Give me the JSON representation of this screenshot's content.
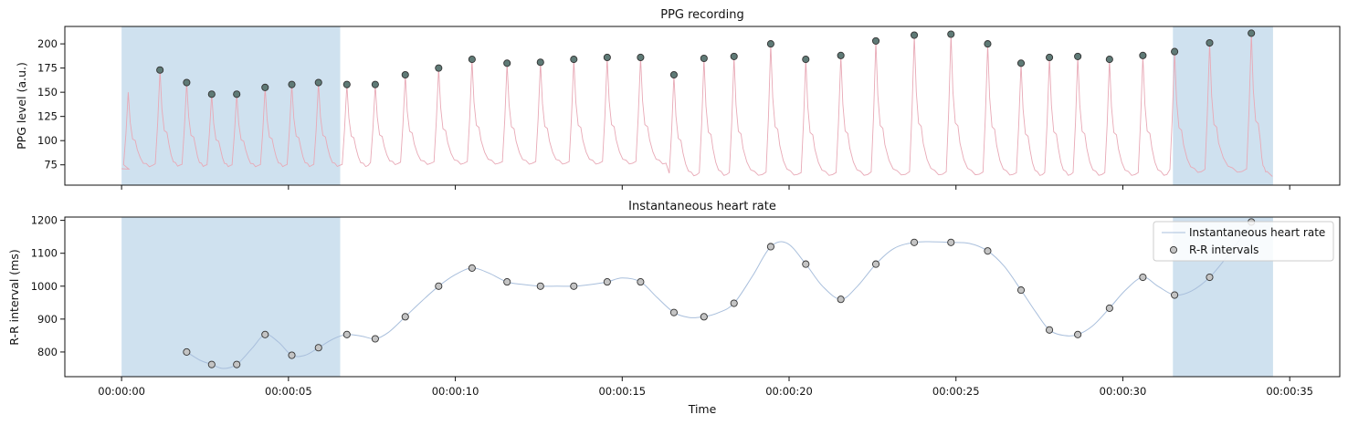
{
  "colors": {
    "shade": "#cfe1ef",
    "ppg_line": "#e8a9b6",
    "ppg_peak_fill": "#5f7a76",
    "hr_line": "#a9bfdc",
    "rr_point_fill": "#c4c4c4",
    "marker_edge": "#333333"
  },
  "chart_data": [
    {
      "type": "line",
      "title": "PPG recording",
      "ylabel": "PPG level (a.u.)",
      "xlim": [
        -1.7,
        36.5
      ],
      "ylim": [
        54,
        218
      ],
      "yticks": [
        75,
        100,
        125,
        150,
        175,
        200
      ],
      "xticks_seconds": [
        0,
        5,
        10,
        15,
        20,
        25,
        30,
        35
      ],
      "shaded_regions": [
        [
          0,
          6.55
        ],
        [
          31.5,
          34.5
        ]
      ],
      "peaks": {
        "t": [
          1.15,
          1.95,
          2.7,
          3.45,
          4.3,
          5.1,
          5.9,
          6.75,
          7.6,
          8.5,
          9.5,
          10.5,
          11.55,
          12.55,
          13.55,
          14.55,
          15.55,
          16.55,
          17.45,
          18.35,
          19.45,
          20.5,
          21.55,
          22.6,
          23.75,
          24.85,
          25.95,
          26.95,
          27.8,
          28.65,
          29.6,
          30.6,
          31.55,
          32.6,
          33.85
        ],
        "v": [
          173,
          160,
          148,
          148,
          155,
          158,
          160,
          158,
          158,
          168,
          175,
          184,
          180,
          181,
          184,
          186,
          186,
          168,
          185,
          187,
          200,
          184,
          188,
          203,
          209,
          210,
          200,
          180,
          186,
          187,
          184,
          188,
          192,
          201,
          211
        ]
      }
    },
    {
      "type": "line",
      "title": "Instantaneous heart rate",
      "ylabel": "R-R interval (ms)",
      "xlabel": "Time",
      "xlim": [
        -1.7,
        36.5
      ],
      "ylim": [
        725,
        1210
      ],
      "yticks": [
        800,
        900,
        1000,
        1100,
        1200
      ],
      "xticks": [
        "00:00:00",
        "00:00:05",
        "00:00:10",
        "00:00:15",
        "00:00:20",
        "00:00:25",
        "00:00:30",
        "00:00:35"
      ],
      "xticks_seconds": [
        0,
        5,
        10,
        15,
        20,
        25,
        30,
        35
      ],
      "shaded_regions": [
        [
          0,
          6.55
        ],
        [
          31.5,
          34.5
        ]
      ],
      "legend_position": "top-right",
      "series": [
        {
          "name": "Instantaneous heart rate",
          "kind": "line",
          "x": [
            1.95,
            2.35,
            2.7,
            3.05,
            3.45,
            3.9,
            4.3,
            4.7,
            5.1,
            5.5,
            5.9,
            6.35,
            6.75,
            7.2,
            7.6,
            8.0,
            8.5,
            9.0,
            9.5,
            10.0,
            10.5,
            11.0,
            11.55,
            12.05,
            12.55,
            13.05,
            13.55,
            14.05,
            14.55,
            15.0,
            15.55,
            16.05,
            16.55,
            17.0,
            17.45,
            17.9,
            18.35,
            18.9,
            19.45,
            19.95,
            20.5,
            21.0,
            21.55,
            22.05,
            22.6,
            23.15,
            23.75,
            24.3,
            24.85,
            25.4,
            25.95,
            26.45,
            26.95,
            27.4,
            27.8,
            28.25,
            28.65,
            29.1,
            29.6,
            30.1,
            30.6,
            31.05,
            31.55,
            32.05,
            32.6,
            33.2,
            33.85
          ],
          "y": [
            800,
            775,
            762,
            750,
            762,
            810,
            853,
            830,
            790,
            790,
            813,
            840,
            853,
            848,
            840,
            860,
            907,
            955,
            1000,
            1035,
            1055,
            1040,
            1013,
            1005,
            1000,
            1000,
            1000,
            1005,
            1013,
            1025,
            1013,
            965,
            920,
            905,
            907,
            920,
            948,
            1030,
            1120,
            1130,
            1067,
            1000,
            960,
            1000,
            1067,
            1115,
            1133,
            1135,
            1133,
            1130,
            1107,
            1060,
            988,
            920,
            867,
            850,
            853,
            880,
            933,
            990,
            1027,
            1000,
            973,
            985,
            1027,
            1100,
            1190
          ]
        },
        {
          "name": "R-R intervals",
          "kind": "scatter",
          "x": [
            1.95,
            2.7,
            3.45,
            4.3,
            5.1,
            5.9,
            6.75,
            7.6,
            8.5,
            9.5,
            10.5,
            11.55,
            12.55,
            13.55,
            14.55,
            15.55,
            16.55,
            17.45,
            18.35,
            19.45,
            20.5,
            21.55,
            22.6,
            23.75,
            24.85,
            25.95,
            26.95,
            27.8,
            28.65,
            29.6,
            30.6,
            31.55,
            32.6,
            33.85
          ],
          "y": [
            800,
            762,
            762,
            853,
            790,
            813,
            853,
            840,
            907,
            1000,
            1055,
            1013,
            1000,
            1000,
            1013,
            1013,
            920,
            907,
            948,
            1120,
            1067,
            960,
            1067,
            1133,
            1133,
            1107,
            988,
            867,
            853,
            933,
            1027,
            973,
            1027,
            1195
          ]
        }
      ]
    }
  ]
}
